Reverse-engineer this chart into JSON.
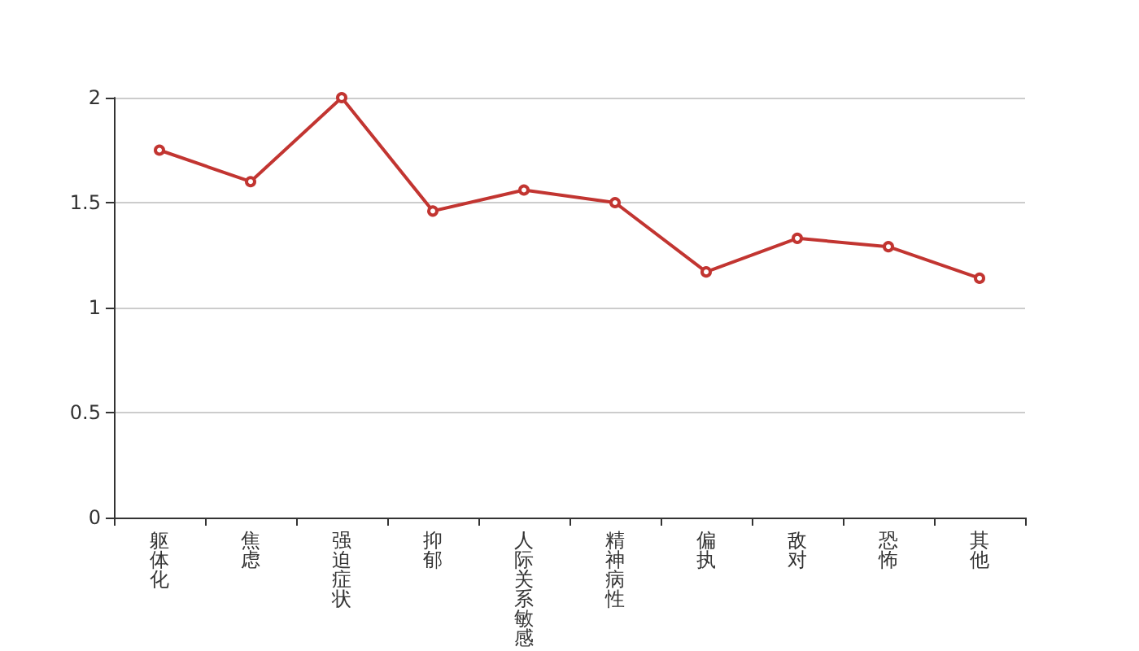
{
  "chart_data": {
    "type": "line",
    "categories": [
      "躯体化",
      "焦虑",
      "强迫症状",
      "抑郁",
      "人际关系敏感",
      "精神病性",
      "偏执",
      "敌对",
      "恐怖",
      "其他"
    ],
    "series": [
      {
        "color": "#c23531",
        "values": [
          1.75,
          1.6,
          2.0,
          1.46,
          1.56,
          1.5,
          1.17,
          1.33,
          1.29,
          1.14
        ]
      }
    ],
    "ylim": [
      0,
      2
    ],
    "yticks": [
      0,
      0.5,
      1,
      1.5,
      2
    ],
    "grid": "y",
    "marker": "circle",
    "line_style": "solid"
  }
}
